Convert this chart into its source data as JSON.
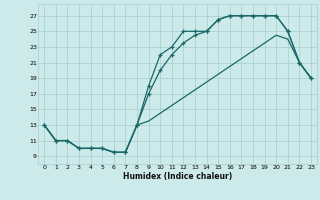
{
  "background_color": "#cceaea",
  "grid_color": "#a8cccc",
  "line_color": "#1a6868",
  "xlim": [
    -0.5,
    23.5
  ],
  "ylim": [
    8.0,
    28.5
  ],
  "xticks": [
    0,
    1,
    2,
    3,
    4,
    5,
    6,
    7,
    8,
    9,
    10,
    11,
    12,
    13,
    14,
    15,
    16,
    17,
    18,
    19,
    20,
    21,
    22,
    23
  ],
  "yticks": [
    9,
    11,
    13,
    15,
    17,
    19,
    21,
    23,
    25,
    27
  ],
  "xlabel": "Humidex (Indice chaleur)",
  "line1_x": [
    0,
    1,
    2,
    3,
    4,
    5,
    6,
    7,
    8,
    9,
    10,
    11,
    12,
    13,
    14,
    15,
    16,
    17,
    18,
    19,
    20,
    21,
    22,
    23
  ],
  "line1_y": [
    13,
    11,
    11,
    10,
    10,
    10,
    9.5,
    9.5,
    13,
    18,
    22,
    23,
    25,
    25,
    25,
    26.5,
    27,
    27,
    27,
    27,
    27,
    25,
    21,
    19
  ],
  "line2_x": [
    0,
    1,
    2,
    3,
    4,
    5,
    6,
    7,
    8,
    9,
    10,
    11,
    12,
    13,
    14,
    15,
    16,
    17,
    18,
    19,
    20,
    21,
    22,
    23
  ],
  "line2_y": [
    13,
    11,
    11,
    10,
    10,
    10,
    9.5,
    9.5,
    13,
    17,
    20,
    22,
    23.5,
    24.5,
    25,
    26.5,
    27,
    27,
    27,
    27,
    27,
    25,
    21,
    19
  ],
  "line3_x": [
    0,
    1,
    2,
    3,
    4,
    5,
    6,
    7,
    8,
    9,
    10,
    11,
    12,
    13,
    14,
    15,
    16,
    17,
    18,
    19,
    20,
    21,
    22,
    23
  ],
  "line3_y": [
    13,
    11,
    11,
    10,
    10,
    10,
    9.5,
    9.5,
    13,
    13.5,
    14.5,
    15.5,
    16.5,
    17.5,
    18.5,
    19.5,
    20.5,
    21.5,
    22.5,
    23.5,
    24.5,
    24,
    21,
    19
  ]
}
